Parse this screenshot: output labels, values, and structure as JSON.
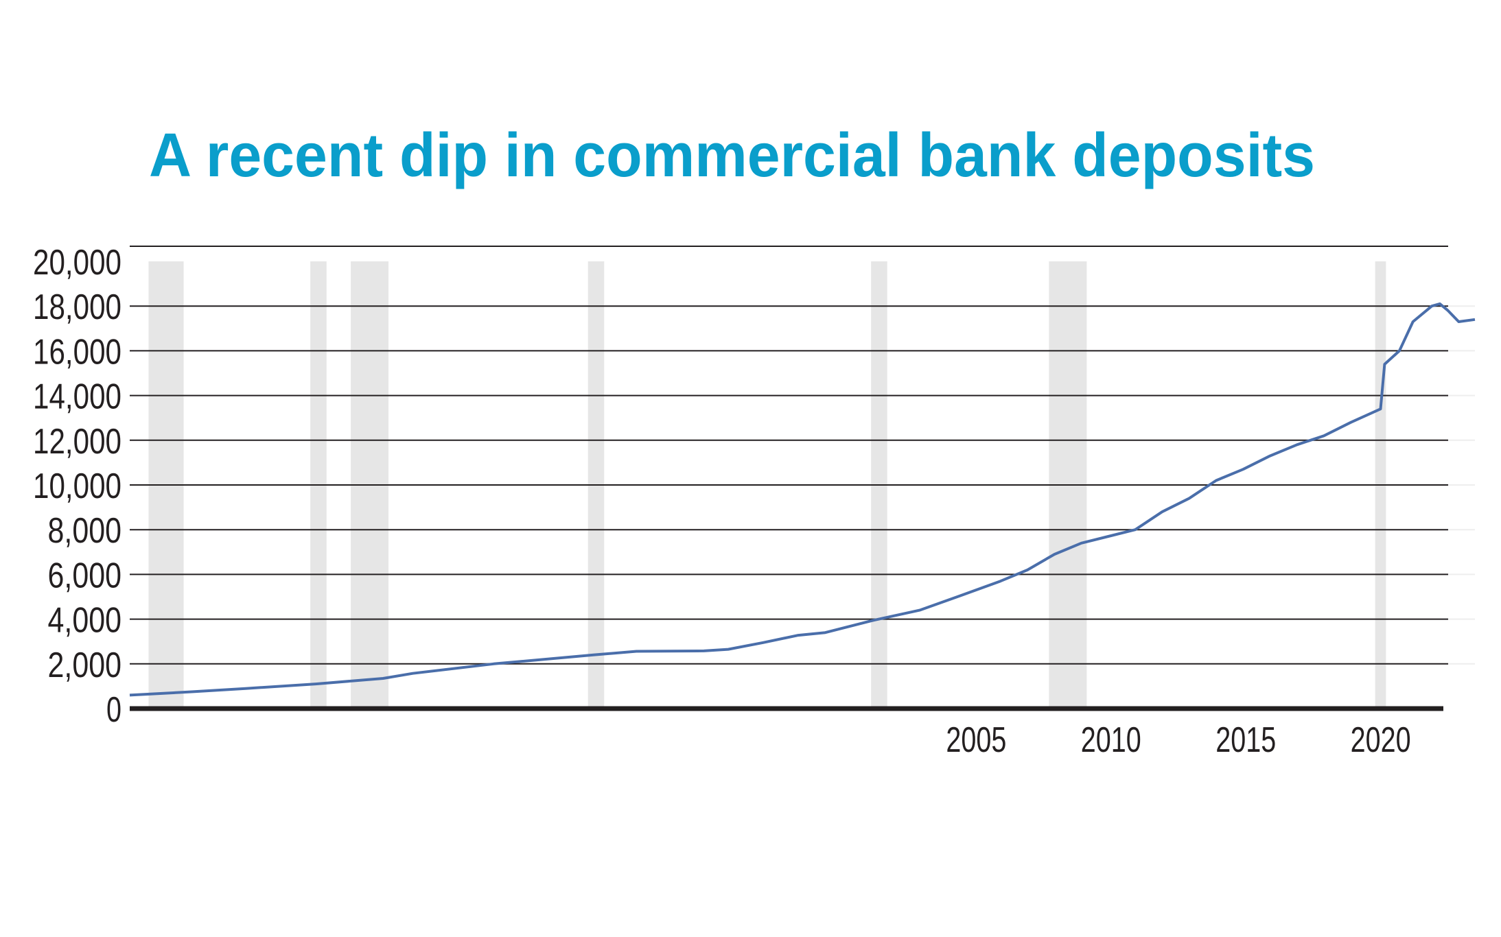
{
  "chart_data": {
    "type": "line",
    "title": "A recent dip in commercial bank deposits",
    "xlabel": "",
    "ylabel": "",
    "xlim": [
      1973.7,
      2023.6
    ],
    "ylim": [
      0,
      20000
    ],
    "grid": true,
    "y_ticks": [
      0,
      2000,
      4000,
      6000,
      8000,
      10000,
      12000,
      14000,
      16000,
      18000,
      20000
    ],
    "y_tick_labels": [
      "0",
      "2,000",
      "4,000",
      "6,000",
      "8,000",
      "10,000",
      "12,000",
      "14,000",
      "16,000",
      "18,000",
      "20,000"
    ],
    "x_ticks": [
      2005,
      2010,
      2015,
      2020
    ],
    "x_tick_labels": [
      "2005",
      "2010",
      "2015",
      "2020"
    ],
    "shaded_periods": [
      [
        1974.4,
        1975.7
      ],
      [
        1980.4,
        1981.0
      ],
      [
        1981.9,
        1983.3
      ],
      [
        1990.7,
        1991.3
      ],
      [
        2001.2,
        2001.8
      ],
      [
        2007.8,
        2009.2
      ],
      [
        2019.9,
        2020.3
      ]
    ],
    "series": [
      {
        "x": [
          1973.7,
          1976,
          1978,
          1980.6,
          1983.1,
          1984.2,
          1987.2,
          1990.9,
          1992.5,
          1995,
          1995.9,
          1997.2,
          1998.5,
          1999.5,
          2001.3,
          2003,
          2004.4,
          2006,
          2007,
          2008,
          2009,
          2010,
          2011,
          2012,
          2013,
          2014,
          2015,
          2016,
          2017,
          2018,
          2019,
          2020.1,
          2020.25,
          2020.8,
          2021.3,
          2022.0,
          2022.3,
          2022.6,
          2023.0,
          2023.6
        ],
        "y": [
          600,
          750,
          900,
          1100,
          1350,
          1575,
          2000,
          2400,
          2560,
          2580,
          2650,
          2950,
          3280,
          3400,
          3950,
          4400,
          5000,
          5700,
          6200,
          6900,
          7400,
          7700,
          8000,
          8800,
          9400,
          10200,
          10700,
          11300,
          11800,
          12200,
          12800,
          13400,
          15400,
          16000,
          17300,
          18000,
          18100,
          17800,
          17300,
          17400
        ]
      }
    ],
    "colors": {
      "title": "#0a9ecb",
      "line": "#4a6eaa",
      "shade": "#e6e6e6",
      "grid": "#231f20"
    }
  }
}
